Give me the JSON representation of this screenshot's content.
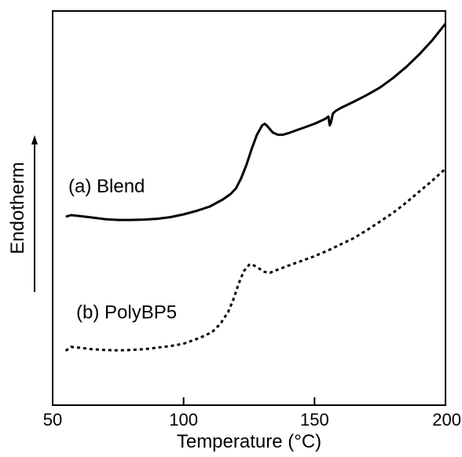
{
  "chart_data": {
    "type": "line",
    "title": "",
    "xlabel": "Temperature (°C)",
    "ylabel": "Endotherm",
    "xlim": [
      50,
      200
    ],
    "ylim": [
      0,
      100
    ],
    "x_ticks": [
      50,
      100,
      150,
      200
    ],
    "y_ticks": [],
    "grid": false,
    "legend": "inline-labels",
    "series": [
      {
        "name": "(a) Blend",
        "style": "solid",
        "color": "#000000",
        "label_at": [
          56,
          54
        ],
        "points": [
          [
            55,
            47.8
          ],
          [
            57,
            48.2
          ],
          [
            60,
            48.0
          ],
          [
            65,
            47.6
          ],
          [
            70,
            47.2
          ],
          [
            75,
            47.0
          ],
          [
            80,
            47.0
          ],
          [
            85,
            47.1
          ],
          [
            90,
            47.3
          ],
          [
            95,
            47.7
          ],
          [
            100,
            48.4
          ],
          [
            105,
            49.3
          ],
          [
            110,
            50.4
          ],
          [
            115,
            52.2
          ],
          [
            118,
            53.6
          ],
          [
            120,
            55.0
          ],
          [
            122,
            57.6
          ],
          [
            124,
            61.0
          ],
          [
            126,
            65.0
          ],
          [
            128,
            68.6
          ],
          [
            130,
            71.0
          ],
          [
            131,
            71.4
          ],
          [
            132,
            70.8
          ],
          [
            134,
            69.2
          ],
          [
            136,
            68.6
          ],
          [
            138,
            68.6
          ],
          [
            140,
            69.0
          ],
          [
            145,
            70.2
          ],
          [
            150,
            71.4
          ],
          [
            154,
            72.6
          ],
          [
            155.3,
            73.2
          ],
          [
            155.8,
            71.0
          ],
          [
            156.3,
            71.8
          ],
          [
            157,
            74.0
          ],
          [
            158,
            74.6
          ],
          [
            160,
            75.4
          ],
          [
            165,
            77.0
          ],
          [
            170,
            78.7
          ],
          [
            175,
            80.6
          ],
          [
            180,
            83.0
          ],
          [
            185,
            85.8
          ],
          [
            190,
            89.0
          ],
          [
            195,
            92.6
          ],
          [
            200,
            96.8
          ]
        ]
      },
      {
        "name": "(b) PolyBP5",
        "style": "dashed",
        "color": "#000000",
        "label_at": [
          59,
          22
        ],
        "points": [
          [
            55,
            13.8
          ],
          [
            57,
            14.8
          ],
          [
            60,
            14.6
          ],
          [
            65,
            14.2
          ],
          [
            70,
            14.0
          ],
          [
            75,
            13.9
          ],
          [
            80,
            14.0
          ],
          [
            85,
            14.2
          ],
          [
            90,
            14.6
          ],
          [
            95,
            15.0
          ],
          [
            100,
            15.6
          ],
          [
            105,
            16.8
          ],
          [
            108,
            17.6
          ],
          [
            111,
            18.6
          ],
          [
            114,
            20.6
          ],
          [
            117,
            23.6
          ],
          [
            119,
            26.8
          ],
          [
            121,
            30.8
          ],
          [
            123,
            34.0
          ],
          [
            125,
            35.6
          ],
          [
            126,
            35.8
          ],
          [
            127,
            35.4
          ],
          [
            129,
            34.6
          ],
          [
            131,
            33.8
          ],
          [
            133,
            33.6
          ],
          [
            136,
            34.4
          ],
          [
            140,
            35.4
          ],
          [
            145,
            36.6
          ],
          [
            150,
            37.8
          ],
          [
            155,
            39.2
          ],
          [
            160,
            40.8
          ],
          [
            165,
            42.4
          ],
          [
            170,
            44.4
          ],
          [
            175,
            46.6
          ],
          [
            180,
            48.8
          ],
          [
            185,
            51.4
          ],
          [
            190,
            54.2
          ],
          [
            195,
            57.0
          ],
          [
            200,
            60.0
          ]
        ]
      }
    ]
  }
}
